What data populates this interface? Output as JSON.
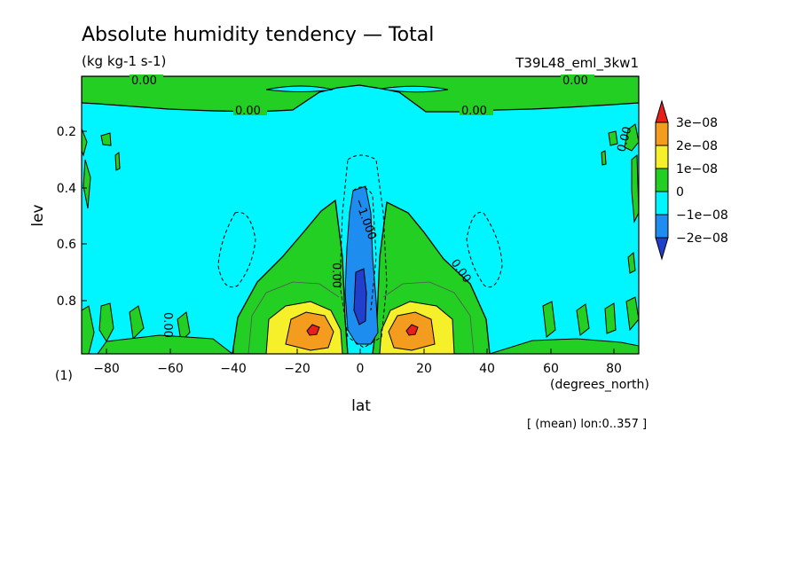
{
  "chart_data": {
    "type": "heatmap",
    "title": "Absolute humidity tendency — Total",
    "units": "(kg kg-1 s-1)",
    "run_name": "T39L48_eml_3kw1",
    "xlabel": "lat",
    "x_unit": "(degrees_north)",
    "ylabel": "lev",
    "y_unit": "(1)",
    "x_ticks": [
      "−80",
      "−60",
      "−40",
      "−20",
      "0",
      "20",
      "40",
      "60",
      "80"
    ],
    "y_ticks": [
      "0.2",
      "0.4",
      "0.6",
      "0.8"
    ],
    "xlim": [
      -88,
      88
    ],
    "ylim": [
      1.0,
      0.01
    ],
    "y_reversed": true,
    "averaging_note": "[ (mean) lon:0..357 ]",
    "colorbar": {
      "labels": [
        "3e−08",
        "2e−08",
        "1e−08",
        "0",
        "−1e−08",
        "−2e−08"
      ],
      "colors": [
        "#e8201c",
        "#f39c1e",
        "#f5f02a",
        "#22cf22",
        "#00f6ff",
        "#1e8df0",
        "#1f3fcc"
      ]
    },
    "contour_labels": [
      "0.00",
      "−1.000"
    ]
  }
}
